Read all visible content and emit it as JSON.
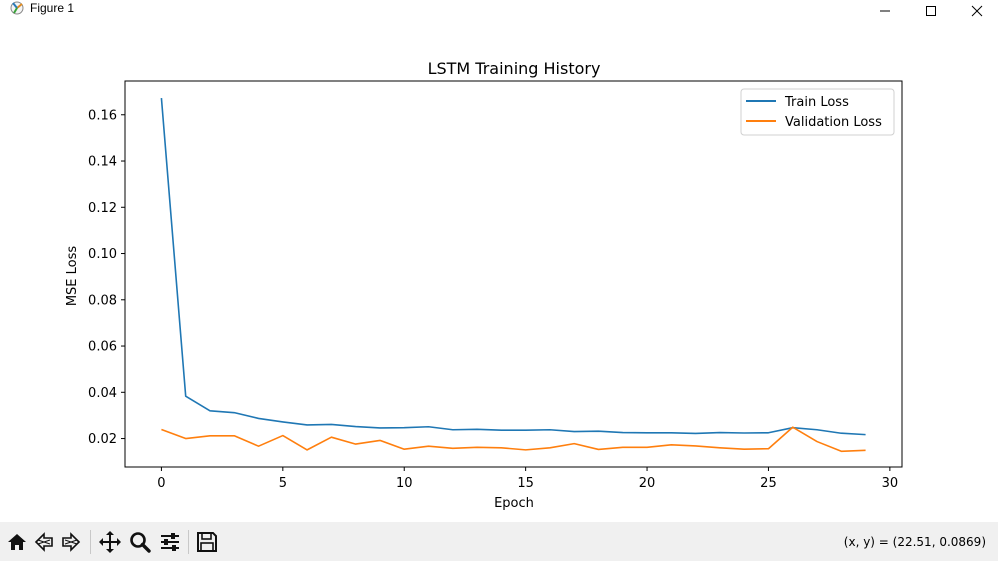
{
  "window": {
    "title": "Figure 1"
  },
  "toolbar": {
    "buttons": [
      "home-icon",
      "back-icon",
      "forward-icon",
      "pan-icon",
      "zoom-icon",
      "configure-subplots-icon",
      "save-icon"
    ],
    "coords_readout": "(x, y) = (22.51, 0.0869)"
  },
  "colors": {
    "train": "#1f77b4",
    "validation": "#ff7f0e"
  },
  "chart_data": {
    "type": "line",
    "title": "LSTM Training History",
    "xlabel": "Epoch",
    "ylabel": "MSE Loss",
    "xlim": [
      -1.5,
      30.5
    ],
    "ylim": [
      0.0077,
      0.1746
    ],
    "xticks": [
      0,
      5,
      10,
      15,
      20,
      25,
      30
    ],
    "xtick_labels": [
      "0",
      "5",
      "10",
      "15",
      "20",
      "25",
      "30"
    ],
    "yticks": [
      0.02,
      0.04,
      0.06,
      0.08,
      0.1,
      0.12,
      0.14,
      0.16
    ],
    "ytick_labels": [
      "0.02",
      "0.04",
      "0.06",
      "0.08",
      "0.10",
      "0.12",
      "0.14",
      "0.16"
    ],
    "grid": false,
    "legend_position": "top-right",
    "x": [
      0,
      1,
      2,
      3,
      4,
      5,
      6,
      7,
      8,
      9,
      10,
      11,
      12,
      13,
      14,
      15,
      16,
      17,
      18,
      19,
      20,
      21,
      22,
      23,
      24,
      25,
      26,
      27,
      28,
      29
    ],
    "series": [
      {
        "name": "Train Loss",
        "values": [
          0.1672,
          0.0383,
          0.032,
          0.0312,
          0.0287,
          0.0272,
          0.0259,
          0.0261,
          0.0252,
          0.0246,
          0.0247,
          0.0251,
          0.0238,
          0.024,
          0.0236,
          0.0236,
          0.0238,
          0.023,
          0.0232,
          0.0226,
          0.0225,
          0.0225,
          0.0222,
          0.0226,
          0.0224,
          0.0225,
          0.0247,
          0.0238,
          0.0223,
          0.0217
        ]
      },
      {
        "name": "Validation Loss",
        "values": [
          0.0239,
          0.02,
          0.0212,
          0.0212,
          0.0167,
          0.0213,
          0.0151,
          0.0206,
          0.0176,
          0.0192,
          0.0154,
          0.0167,
          0.0158,
          0.0162,
          0.016,
          0.0151,
          0.016,
          0.0178,
          0.0153,
          0.0162,
          0.0162,
          0.0173,
          0.0168,
          0.016,
          0.0154,
          0.0156,
          0.0249,
          0.0187,
          0.0145,
          0.0149
        ]
      }
    ]
  }
}
